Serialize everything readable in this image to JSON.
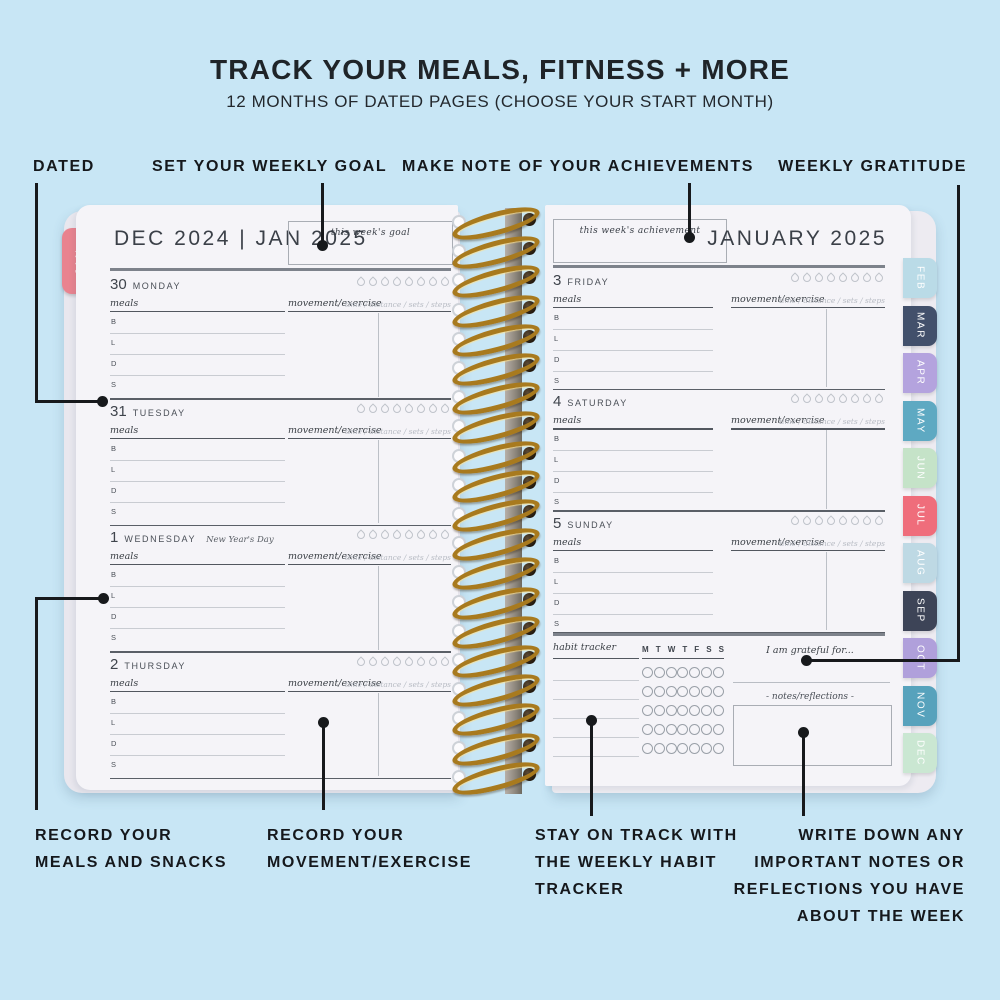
{
  "header": {
    "title": "TRACK YOUR MEALS, FITNESS + MORE",
    "subtitle": "12 MONTHS OF DATED PAGES (CHOOSE YOUR START MONTH)"
  },
  "callouts": {
    "dated": "DATED",
    "weekly_goal": "SET YOUR WEEKLY GOAL",
    "achievements": "MAKE NOTE OF YOUR ACHIEVEMENTS",
    "gratitude": "WEEKLY GRATITUDE",
    "record_meals": "RECORD YOUR MEALS AND SNACKS",
    "record_movement": "RECORD YOUR MOVEMENT/EXERCISE",
    "habit": "STAY ON TRACK WITH THE WEEKLY HABIT TRACKER",
    "notes": "WRITE DOWN ANY IMPORTANT NOTES OR REFLECTIONS YOU HAVE ABOUT THE WEEK"
  },
  "left_page": {
    "header": "DEC 2024 | JAN 2025",
    "goal_label": "this week's goal",
    "days": [
      {
        "num": "30",
        "name": "MONDAY",
        "note": ""
      },
      {
        "num": "31",
        "name": "TUESDAY",
        "note": ""
      },
      {
        "num": "1",
        "name": "WEDNESDAY",
        "note": "New Year's Day"
      },
      {
        "num": "2",
        "name": "THURSDAY",
        "note": ""
      }
    ]
  },
  "right_page": {
    "header": "JANUARY 2025",
    "achievement_label": "this week's achievement",
    "gratitude_label": "I am grateful for...",
    "notes_label": "-  notes/reflections  -",
    "days": [
      {
        "num": "3",
        "name": "FRIDAY",
        "note": ""
      },
      {
        "num": "4",
        "name": "SATURDAY",
        "note": ""
      },
      {
        "num": "5",
        "name": "SUNDAY",
        "note": ""
      }
    ]
  },
  "day_block": {
    "meals_label": "meals",
    "movement_label": "movement/exercise",
    "stats_label": "time / distance / sets / steps",
    "meal_rows": [
      "B",
      "L",
      "D",
      "S"
    ],
    "water_drops": 8
  },
  "habit": {
    "label": "habit tracker",
    "day_headers": [
      "M",
      "T",
      "W",
      "T",
      "F",
      "S",
      "S"
    ],
    "rows": 5,
    "circles_per_row": 7
  },
  "tabs": {
    "jan": {
      "label": "JAN",
      "color": "#e9838f"
    },
    "months": [
      {
        "label": "FEB",
        "color": "#badbe7"
      },
      {
        "label": "MAR",
        "color": "#42506b"
      },
      {
        "label": "APR",
        "color": "#b4a3de"
      },
      {
        "label": "MAY",
        "color": "#5ea9c2"
      },
      {
        "label": "JUN",
        "color": "#c5e3c8"
      },
      {
        "label": "JUL",
        "color": "#ef6d7b"
      },
      {
        "label": "AUG",
        "color": "#bed9e4"
      },
      {
        "label": "SEP",
        "color": "#3d4457"
      },
      {
        "label": "OCT",
        "color": "#b0a0db"
      },
      {
        "label": "NOV",
        "color": "#57a2bc"
      },
      {
        "label": "DEC",
        "color": "#cae7d2"
      }
    ]
  },
  "colors": {
    "background": "#c8e6f5",
    "page": "#f5f4f8",
    "callout_line": "#17191c",
    "spiral_gold": "#a87a1e",
    "planner_text": "#3f444c"
  }
}
